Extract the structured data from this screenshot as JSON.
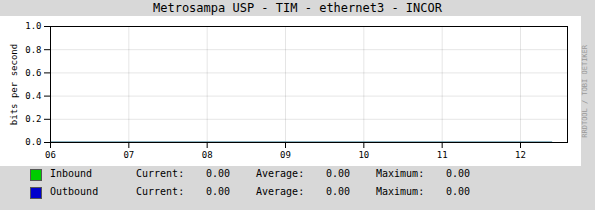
{
  "chart_data": {
    "type": "line",
    "title": "Metrosampa USP - TIM - ethernet3 - INCOR",
    "ylabel": "bits per second",
    "xlim": [
      6,
      12.6
    ],
    "xticks": [
      {
        "value": 6,
        "label": "06"
      },
      {
        "value": 7,
        "label": "07"
      },
      {
        "value": 8,
        "label": "08"
      },
      {
        "value": 9,
        "label": "09"
      },
      {
        "value": 10,
        "label": "10"
      },
      {
        "value": 11,
        "label": "11"
      },
      {
        "value": 12,
        "label": "12"
      }
    ],
    "ylim": [
      0.0,
      1.0
    ],
    "yticks": [
      {
        "value": 0,
        "label": "0.0"
      },
      0.2,
      0.4,
      0.6,
      0.8,
      {
        "value": 1,
        "label": "1.0"
      }
    ],
    "grid": true,
    "stat_names": [
      "Current:",
      "Average:",
      "Maximum:"
    ],
    "series": [
      {
        "name": "Inbound",
        "color": "#00cc00",
        "x": [
          6,
          12.4
        ],
        "values": [
          0,
          0
        ],
        "stats": [
          {
            "value": 0,
            "label": "0.00"
          },
          {
            "value": 0,
            "label": "0.00"
          },
          {
            "value": 0,
            "label": "0.00"
          }
        ]
      },
      {
        "name": "Outbound",
        "color": "#0000cc",
        "x": [
          6,
          12.4
        ],
        "values": [
          0,
          0
        ],
        "stats": [
          {
            "value": 0,
            "label": "0.00"
          },
          {
            "value": 0,
            "label": "0.00"
          },
          {
            "value": 0,
            "label": "0.00"
          }
        ]
      }
    ],
    "annotations": [
      "RRDTOOL / TOBI OETIKER"
    ]
  }
}
